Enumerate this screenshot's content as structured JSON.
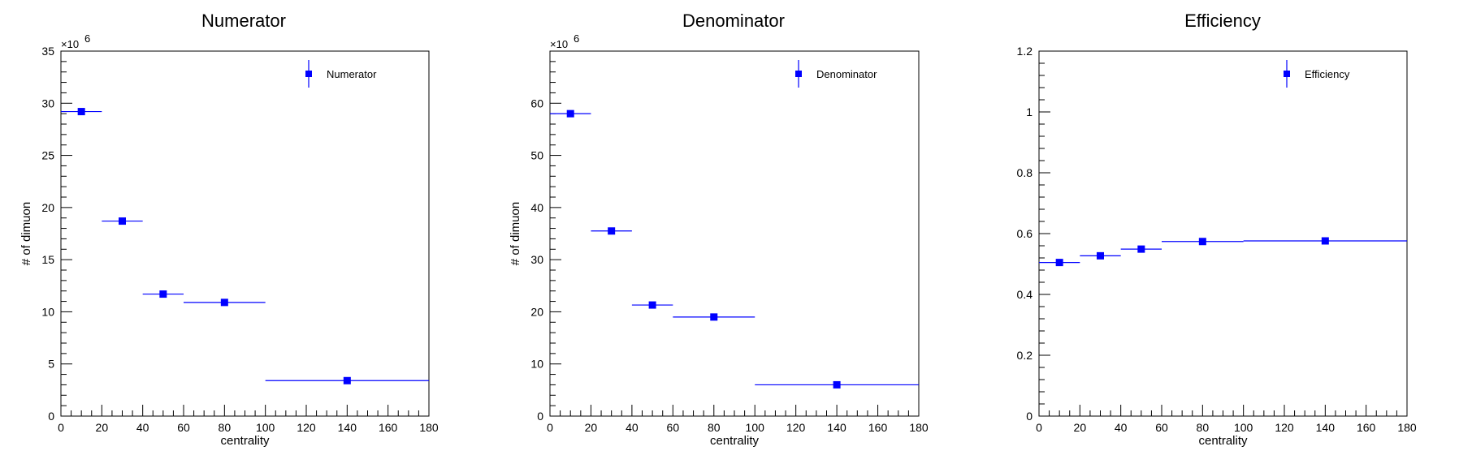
{
  "colors": {
    "marker": "#0000ff",
    "axis": "#000000",
    "frame": "#000000",
    "background": "#ffffff"
  },
  "chart_data": [
    {
      "type": "scatter",
      "title": "Numerator",
      "xlabel": "centrality",
      "ylabel": "# of dimuon",
      "y_exponent_label": "×10",
      "y_exponent_power": "6",
      "xlim": [
        0,
        180
      ],
      "ylim": [
        0,
        35
      ],
      "xticks": [
        0,
        20,
        40,
        60,
        80,
        100,
        120,
        140,
        160,
        180
      ],
      "yticks": [
        0,
        5,
        10,
        15,
        20,
        25,
        30,
        35
      ],
      "legend": {
        "position": "top-right",
        "label": "Numerator"
      },
      "grid": false,
      "series": [
        {
          "name": "Numerator",
          "points": [
            {
              "x": 10,
              "xlow": 0,
              "xhigh": 20,
              "y": 29.2
            },
            {
              "x": 30,
              "xlow": 20,
              "xhigh": 40,
              "y": 18.7
            },
            {
              "x": 50,
              "xlow": 40,
              "xhigh": 60,
              "y": 11.7
            },
            {
              "x": 80,
              "xlow": 60,
              "xhigh": 100,
              "y": 10.9
            },
            {
              "x": 140,
              "xlow": 100,
              "xhigh": 180,
              "y": 3.4
            }
          ]
        }
      ]
    },
    {
      "type": "scatter",
      "title": "Denominator",
      "xlabel": "centrality",
      "ylabel": "# of dimuon",
      "y_exponent_label": "×10",
      "y_exponent_power": "6",
      "xlim": [
        0,
        180
      ],
      "ylim": [
        0,
        70
      ],
      "xticks": [
        0,
        20,
        40,
        60,
        80,
        100,
        120,
        140,
        160,
        180
      ],
      "yticks": [
        0,
        10,
        20,
        30,
        40,
        50,
        60
      ],
      "legend": {
        "position": "top-right",
        "label": "Denominator"
      },
      "grid": false,
      "series": [
        {
          "name": "Denominator",
          "points": [
            {
              "x": 10,
              "xlow": 0,
              "xhigh": 20,
              "y": 58.0
            },
            {
              "x": 30,
              "xlow": 20,
              "xhigh": 40,
              "y": 35.5
            },
            {
              "x": 50,
              "xlow": 40,
              "xhigh": 60,
              "y": 21.3
            },
            {
              "x": 80,
              "xlow": 60,
              "xhigh": 100,
              "y": 19.0
            },
            {
              "x": 140,
              "xlow": 100,
              "xhigh": 180,
              "y": 6.0
            }
          ]
        }
      ]
    },
    {
      "type": "scatter",
      "title": "Efficiency",
      "xlabel": "centrality",
      "ylabel": "",
      "y_exponent_label": "",
      "y_exponent_power": "",
      "xlim": [
        0,
        180
      ],
      "ylim": [
        0,
        1.2
      ],
      "xticks": [
        0,
        20,
        40,
        60,
        80,
        100,
        120,
        140,
        160,
        180
      ],
      "yticks": [
        0,
        0.2,
        0.4,
        0.6,
        0.8,
        1,
        1.2
      ],
      "legend": {
        "position": "top-right",
        "label": "Efficiency"
      },
      "grid": false,
      "series": [
        {
          "name": "Efficiency",
          "points": [
            {
              "x": 10,
              "xlow": 0,
              "xhigh": 20,
              "y": 0.505
            },
            {
              "x": 30,
              "xlow": 20,
              "xhigh": 40,
              "y": 0.527
            },
            {
              "x": 50,
              "xlow": 40,
              "xhigh": 60,
              "y": 0.549
            },
            {
              "x": 80,
              "xlow": 60,
              "xhigh": 100,
              "y": 0.574
            },
            {
              "x": 140,
              "xlow": 100,
              "xhigh": 180,
              "y": 0.576
            }
          ]
        }
      ]
    }
  ]
}
